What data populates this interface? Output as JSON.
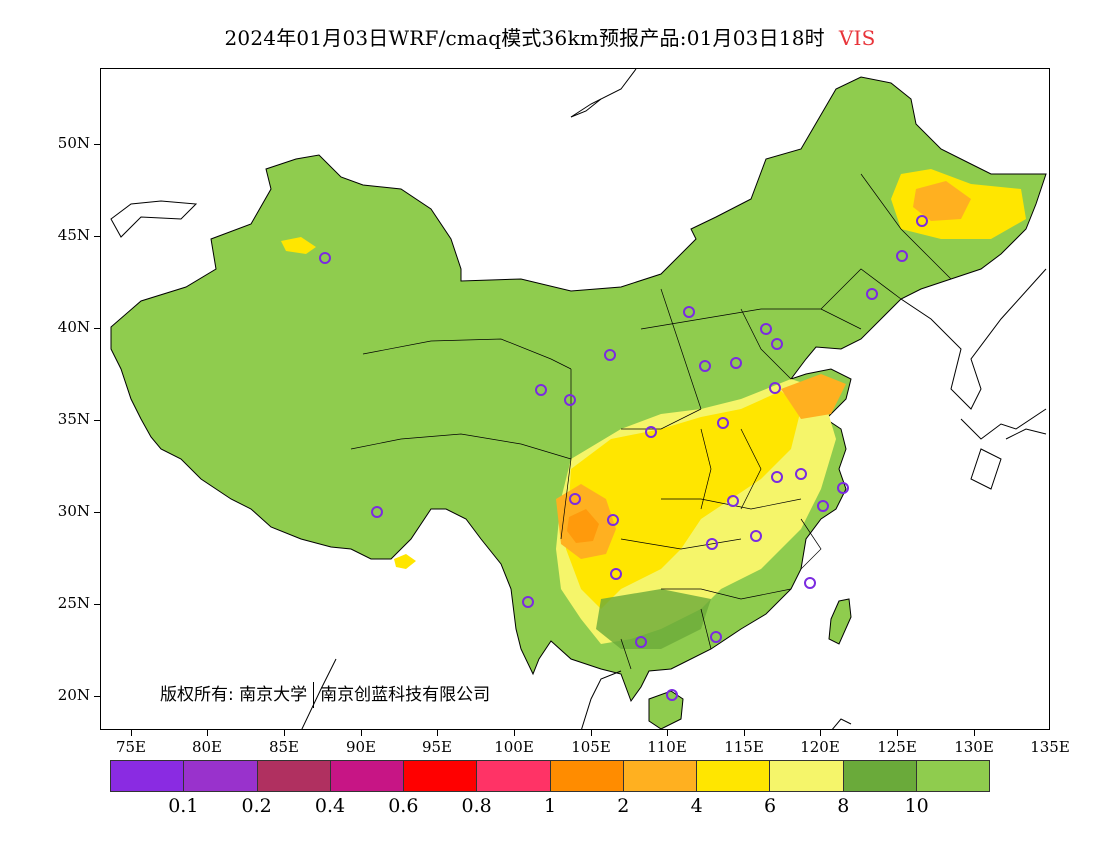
{
  "title": {
    "text": "2024年01月03日WRF/cmaq模式36km预报产品:01月03日18时",
    "variable": "VIS"
  },
  "axes": {
    "lat_labels": [
      "50N",
      "45N",
      "40N",
      "35N",
      "30N",
      "25N",
      "20N"
    ],
    "lon_labels": [
      "75E",
      "80E",
      "85E",
      "90E",
      "95E",
      "100E",
      "105E",
      "110E",
      "115E",
      "120E",
      "125E",
      "130E",
      "135E"
    ]
  },
  "legend": {
    "colors": [
      "#8a2be2",
      "#9932cc",
      "#b03060",
      "#c71585",
      "#ff0000",
      "#ff3366",
      "#ff8c00",
      "#ffb020",
      "#ffe600",
      "#f5f56a",
      "#6aaa3a",
      "#8fcc4e"
    ],
    "labels": [
      "0.1",
      "0.2",
      "0.4",
      "0.6",
      "0.8",
      "1",
      "2",
      "4",
      "6",
      "8",
      "10"
    ]
  },
  "copyright": {
    "owner1": "版权所有: 南京大学",
    "owner2": "南京创蓝科技有限公司"
  },
  "colors": {
    "land_high_vis": "#8fcc4e",
    "land_mid_vis": "#6aaa3a",
    "low_vis_yellow": "#ffe600",
    "light_yellow": "#f5f56a",
    "orange": "#ffb020",
    "deep_orange": "#ff8c00",
    "station_ring": "#7b2be0"
  }
}
